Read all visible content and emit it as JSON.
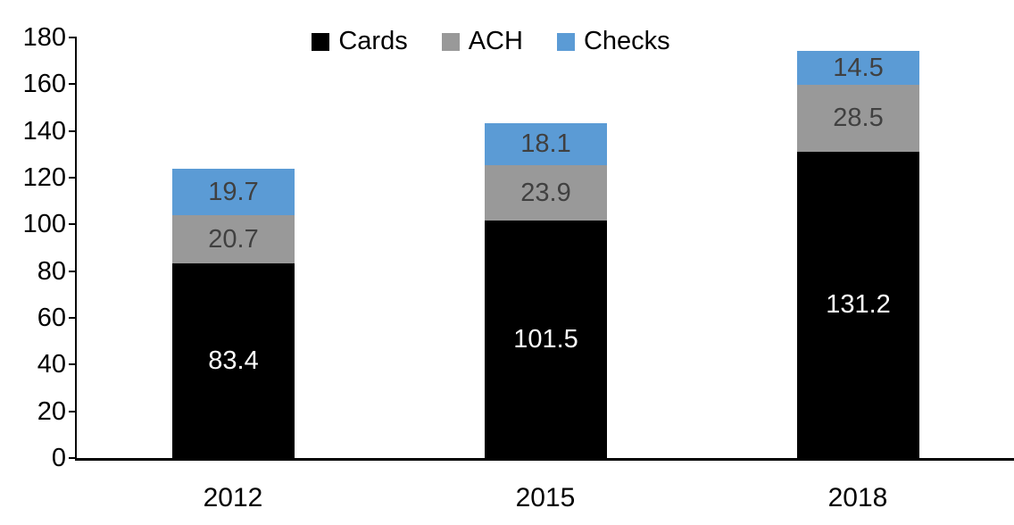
{
  "chart_data": {
    "type": "bar",
    "stacked": true,
    "categories": [
      "2012",
      "2015",
      "2018"
    ],
    "series": [
      {
        "name": "Cards",
        "values": [
          83.4,
          101.5,
          131.2
        ],
        "color": "#000000",
        "label_color": "#FFFFFF"
      },
      {
        "name": "ACH",
        "values": [
          20.7,
          23.9,
          28.5
        ],
        "color": "#999999",
        "label_color": "#404040"
      },
      {
        "name": "Checks",
        "values": [
          19.7,
          18.1,
          14.5
        ],
        "color": "#5B9BD5",
        "label_color": "#404040"
      }
    ],
    "title": "",
    "xlabel": "",
    "ylabel": "",
    "ylim": [
      0,
      180
    ],
    "ytick_step": 20,
    "ytick_labels": [
      "0",
      "20",
      "40",
      "60",
      "80",
      "100",
      "120",
      "140",
      "160",
      "180"
    ],
    "legend_entries": [
      "Cards",
      "ACH",
      "Checks"
    ],
    "legend_position": "top-center",
    "grid": false,
    "axis_color": "#000000",
    "background_color": "#FFFFFF"
  }
}
